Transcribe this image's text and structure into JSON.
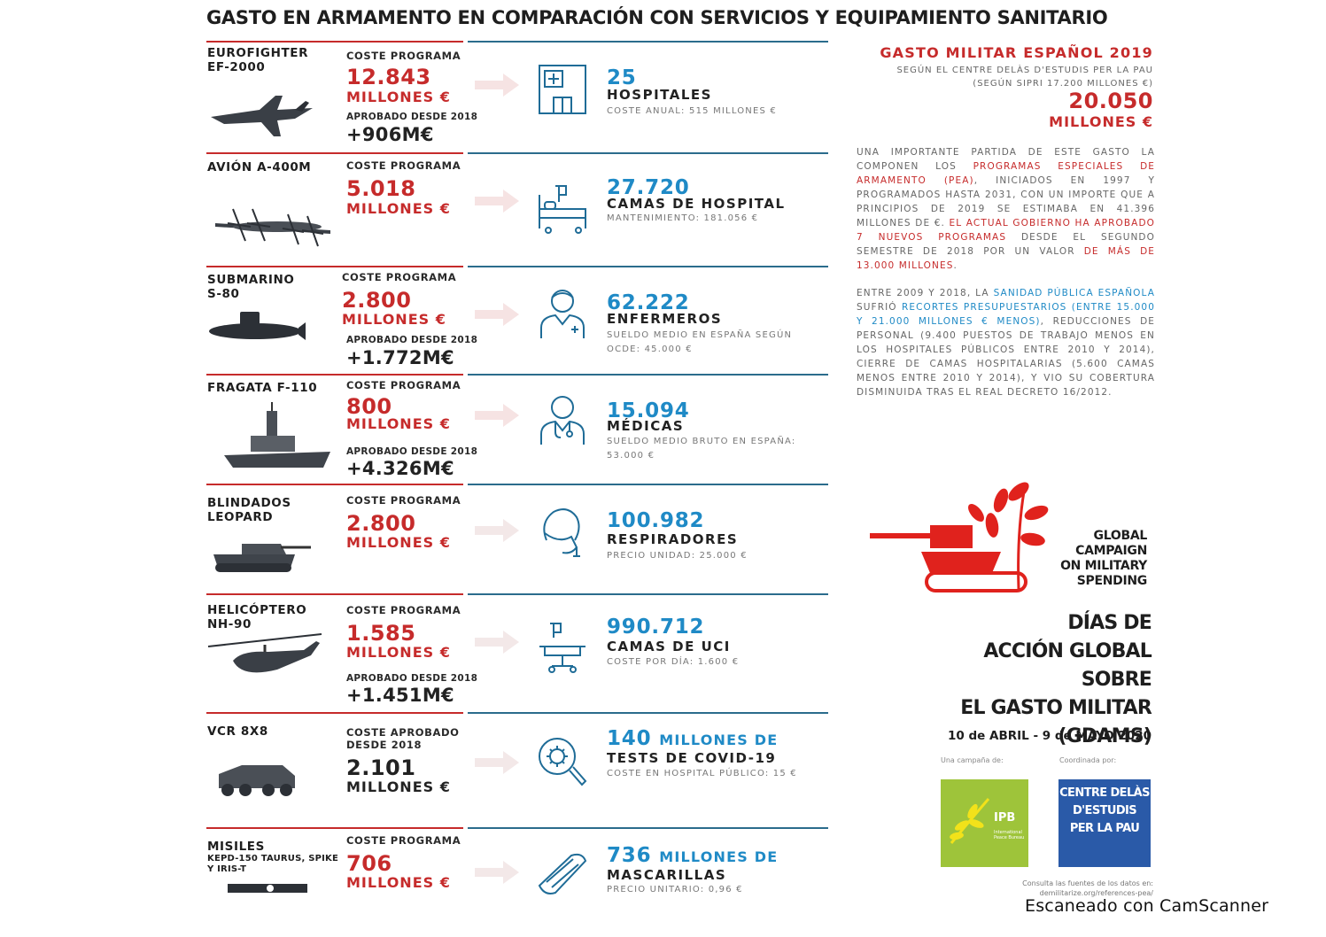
{
  "title": "GASTO EN ARMAMENTO EN COMPARACIÓN CON SERVICIOS Y EQUIPAMIENTO SANITARIO",
  "rows": [
    {
      "weapon": "EUROFIGHTER",
      "weapon_sub": "EF-2000",
      "cost_label": "COSTE PROGRAMA",
      "cost": "12.843",
      "cost_unit": "MILLONES €",
      "approved_label": "APROBADO DESDE 2018",
      "approved": "+906M€",
      "service_number": "25",
      "service_suffix": "",
      "service_name": "HOSPITALES",
      "service_note": "COSTE ANUAL: 515 MILLONES €",
      "icon": "hospital-icon"
    },
    {
      "weapon": "AVIÓN A-400M",
      "weapon_sub": "",
      "cost_label": "COSTE PROGRAMA",
      "cost": "5.018",
      "cost_unit": "MILLONES €",
      "approved_label": "",
      "approved": "",
      "service_number": "27.720",
      "service_suffix": "",
      "service_name": "CAMAS DE HOSPITAL",
      "service_note": "MANTENIMIENTO: 181.056 €",
      "icon": "hospital-bed-icon"
    },
    {
      "weapon": "SUBMARINO",
      "weapon_sub": "S-80",
      "cost_label": "COSTE PROGRAMA",
      "cost": "2.800",
      "cost_unit": "MILLONES €",
      "approved_label": "APROBADO DESDE 2018",
      "approved": "+1.772M€",
      "service_number": "62.222",
      "service_suffix": "",
      "service_name": "ENFERMEROS",
      "service_note": "SUELDO MEDIO EN ESPAÑA SEGÚN OCDE: 45.000 €",
      "icon": "nurse-icon"
    },
    {
      "weapon": "FRAGATA F-110",
      "weapon_sub": "",
      "cost_label": "COSTE PROGRAMA",
      "cost": "800",
      "cost_unit": "MILLONES €",
      "approved_label": "APROBADO DESDE 2018",
      "approved": "+4.326M€",
      "service_number": "15.094",
      "service_suffix": "",
      "service_name": "MÉDICAS",
      "service_note": "SUELDO MEDIO BRUTO EN ESPAÑA: 53.000 €",
      "icon": "doctor-icon"
    },
    {
      "weapon": "BLINDADOS",
      "weapon_sub": "LEOPARD",
      "cost_label": "COSTE PROGRAMA",
      "cost": "2.800",
      "cost_unit": "MILLONES €",
      "approved_label": "",
      "approved": "",
      "service_number": "100.982",
      "service_suffix": "",
      "service_name": "RESPIRADORES",
      "service_note": "PRECIO UNIDAD: 25.000 €",
      "icon": "respirator-icon"
    },
    {
      "weapon": "HELICÓPTERO",
      "weapon_sub": "NH-90",
      "cost_label": "COSTE PROGRAMA",
      "cost": "1.585",
      "cost_unit": "MILLONES €",
      "approved_label": "APROBADO DESDE 2018",
      "approved": "+1.451M€",
      "service_number": "990.712",
      "service_suffix": "",
      "service_name": "CAMAS DE UCI",
      "service_note": "COSTE POR DÍA: 1.600 €",
      "icon": "icu-bed-icon"
    },
    {
      "weapon": "VCR 8X8",
      "weapon_sub": "",
      "cost_label": "COSTE APROBADO DESDE 2018",
      "cost": "2.101",
      "cost_unit": "MILLONES €",
      "approved_label": "",
      "approved": "",
      "service_number": "140",
      "service_suffix": "MILLONES DE",
      "service_name": "TESTS DE COVID-19",
      "service_note": "COSTE EN HOSPITAL PÚBLICO: 15 €",
      "icon": "virus-test-icon"
    },
    {
      "weapon": "MISILES",
      "weapon_sub": "KEPD-150 TAURUS, SPIKE Y IRIS-T",
      "cost_label": "COSTE PROGRAMA",
      "cost": "706",
      "cost_unit": "MILLONES €",
      "approved_label": "",
      "approved": "",
      "service_number": "736",
      "service_suffix": "MILLONES DE",
      "service_name": "MASCARILLAS",
      "service_note": "PRECIO UNITARIO: 0,96 €",
      "icon": "face-mask-icon"
    }
  ],
  "side": {
    "title": "GASTO MILITAR ESPAÑOL 2019",
    "source_line1": "SEGÚN EL CENTRE DELÀS D'ESTUDIS PER LA PAU",
    "source_line2": "(SEGÚN SIPRI 17.200 MILLONES €)",
    "total": "20.050",
    "total_unit": "MILLONES €",
    "p1": [
      {
        "t": "UNA IMPORTANTE PARTIDA DE ESTE GASTO LA COMPONEN LOS ",
        "c": ""
      },
      {
        "t": "PROGRAMAS ESPECIALES DE ARMAMENTO (PEA)",
        "c": "red"
      },
      {
        "t": ", INICIADOS EN 1997 Y PROGRAMADOS HASTA 2031, CON UN IMPORTE QUE A PRINCIPIOS DE 2019 SE ESTIMABA EN 41.396 MILLONES DE €. ",
        "c": ""
      },
      {
        "t": "EL ACTUAL GOBIERNO HA APROBADO 7 NUEVOS PROGRAMAS",
        "c": "red"
      },
      {
        "t": " DESDE EL SEGUNDO SEMESTRE DE 2018 POR UN VALOR ",
        "c": ""
      },
      {
        "t": "DE MÁS DE 13.000 MILLONES",
        "c": "red"
      },
      {
        "t": ".",
        "c": ""
      }
    ],
    "p2": [
      {
        "t": "ENTRE 2009 Y 2018, LA ",
        "c": ""
      },
      {
        "t": "SANIDAD PÚBLICA ESPAÑOLA",
        "c": "blue"
      },
      {
        "t": " SUFRIÓ ",
        "c": ""
      },
      {
        "t": "RECORTES PRESUPUESTARIOS (ENTRE 15.000 Y 21.000 MILLONES € MENOS)",
        "c": "blue"
      },
      {
        "t": ", REDUCCIONES DE PERSONAL (9.400 PUESTOS DE TRABAJO MENOS EN LOS HOSPITALES PÚBLICOS ENTRE 2010 Y 2014), CIERRE DE CAMAS HOSPITALARIAS (5.600 CAMAS MENOS ENTRE 2010 Y 2014), Y VIO SU COBERTURA DISMINUIDA TRAS EL REAL DECRETO 16/2012.",
        "c": ""
      }
    ],
    "campaign_name": [
      "GLOBAL",
      "CAMPAIGN",
      "ON MILITARY",
      "SPENDING"
    ],
    "gdams_title": [
      "DÍAS DE",
      "ACCIÓN GLOBAL SOBRE",
      "EL GASTO MILITAR",
      "(GDAMS)"
    ],
    "dates": "10 de ABRIL - 9 de MAYO 2020",
    "campaign_by_label": "Una campaña de:",
    "coordinated_by_label": "Coordinada por:",
    "ipb_label": "IPB",
    "ipb_sub": "International Peace Bureau",
    "delas_label": [
      "CENTRE DELÀS",
      "D'ESTUDIS",
      "PER LA PAU"
    ],
    "sources_line1": "Consulta las fuentes de los datos en:",
    "sources_line2": "demilitarize.org/references-pea/"
  },
  "footer": "Escaneado con CamScanner",
  "colors": {
    "red": "#c62b2b",
    "blue": "#1f8ac6",
    "dark": "#1e1e1e"
  }
}
